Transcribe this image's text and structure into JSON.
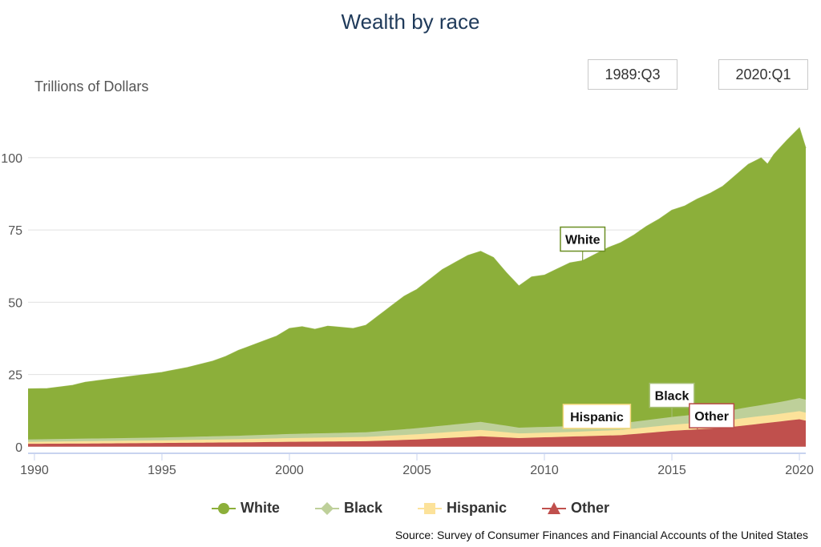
{
  "chart_data": {
    "type": "area",
    "stacked": true,
    "title": "Wealth by race",
    "ylabel": "Trillions of Dollars",
    "xlim": [
      1989.75,
      2020.25
    ],
    "ylim": [
      -2,
      113
    ],
    "yticks": [
      0,
      25,
      50,
      75,
      100
    ],
    "xticks": [
      1990,
      1995,
      2000,
      2005,
      2010,
      2015,
      2020
    ],
    "grid": "horizontal",
    "legend_position": "bottom-center",
    "range": {
      "start": "1989:Q3",
      "end": "2020:Q1"
    },
    "source": "Source: Survey of Consumer Finances and Financial Accounts of the United States",
    "series": [
      {
        "name": "Other",
        "color": "#c0504d",
        "marker": "triangle",
        "x": [
          1989.75,
          1992,
          1995,
          1998,
          2000,
          2003,
          2005,
          2007.5,
          2009,
          2011,
          2013,
          2015,
          2017,
          2018,
          2019,
          2019.5,
          2020,
          2020.25
        ],
        "values": [
          1.0,
          1.1,
          1.3,
          1.5,
          1.7,
          1.9,
          2.5,
          3.6,
          3.0,
          3.5,
          4.0,
          5.5,
          6.5,
          7.5,
          8.5,
          9.0,
          9.5,
          9.0
        ]
      },
      {
        "name": "Hispanic",
        "color": "#fce29a",
        "marker": "square",
        "x": [
          1989.75,
          1992,
          1995,
          1998,
          2000,
          2003,
          2005,
          2007.5,
          2009,
          2011,
          2013,
          2015,
          2017,
          2018,
          2019,
          2019.5,
          2020,
          2020.25
        ],
        "values": [
          0.7,
          0.8,
          0.9,
          1.1,
          1.3,
          1.5,
          1.8,
          2.2,
          1.6,
          1.6,
          1.8,
          2.1,
          2.4,
          2.6,
          2.6,
          2.7,
          2.8,
          2.8
        ]
      },
      {
        "name": "Black",
        "color": "#bed09a",
        "marker": "diamond",
        "x": [
          1989.75,
          1992,
          1995,
          1998,
          2000,
          2003,
          2005,
          2007.5,
          2009,
          2011,
          2013,
          2015,
          2017,
          2018,
          2019,
          2019.5,
          2020,
          2020.25
        ],
        "values": [
          0.8,
          0.9,
          1.0,
          1.2,
          1.4,
          1.6,
          2.1,
          2.8,
          2.0,
          2.0,
          2.3,
          2.7,
          3.2,
          3.6,
          4.0,
          4.2,
          4.5,
          4.5
        ]
      },
      {
        "name": "White",
        "color": "#8caf3a",
        "marker": "circle",
        "x": [
          1989.75,
          1990.5,
          1991,
          1991.5,
          1992,
          1993,
          1994,
          1995,
          1996,
          1997,
          1997.5,
          1998,
          1998.5,
          1999,
          1999.5,
          2000,
          2000.5,
          2001,
          2001.5,
          2002,
          2002.5,
          2003,
          2003.5,
          2004,
          2004.5,
          2005,
          2005.5,
          2006,
          2006.5,
          2007,
          2007.5,
          2008,
          2008.5,
          2009,
          2009.5,
          2010,
          2010.5,
          2011,
          2011.5,
          2012,
          2012.5,
          2013,
          2013.5,
          2014,
          2014.5,
          2015,
          2015.5,
          2016,
          2016.5,
          2017,
          2017.5,
          2018,
          2018.5,
          2018.75,
          2019,
          2019.5,
          2020,
          2020.25
        ],
        "values": [
          17.5,
          17.5,
          18.0,
          18.5,
          19.5,
          20.5,
          21.5,
          22.5,
          24.0,
          26.0,
          27.5,
          29.5,
          31.0,
          32.5,
          34.0,
          36.5,
          37.0,
          36.0,
          37.0,
          36.5,
          36.0,
          37.0,
          40.0,
          43.0,
          46.0,
          48.0,
          51.0,
          54.0,
          56.0,
          58.0,
          59.0,
          57.5,
          53.0,
          49.0,
          52.0,
          52.5,
          54.5,
          56.5,
          57.0,
          59.0,
          61.0,
          62.5,
          64.5,
          67.0,
          69.0,
          71.5,
          72.5,
          74.5,
          76.0,
          78.0,
          81.0,
          84.0,
          85.5,
          83.0,
          86.0,
          90.0,
          93.5,
          87.0
        ]
      }
    ],
    "annotations": [
      {
        "text": "White",
        "series": "White",
        "x": 2011.5,
        "color": "#6b8e23"
      },
      {
        "text": "Hispanic",
        "series": "Hispanic",
        "x": 2013.0,
        "color": "#f5d77a"
      },
      {
        "text": "Black",
        "series": "Black",
        "x": 2015.0,
        "color": "#a9c07a"
      },
      {
        "text": "Other",
        "series": "Other",
        "x": 2016.0,
        "color": "#b94a48"
      }
    ]
  }
}
